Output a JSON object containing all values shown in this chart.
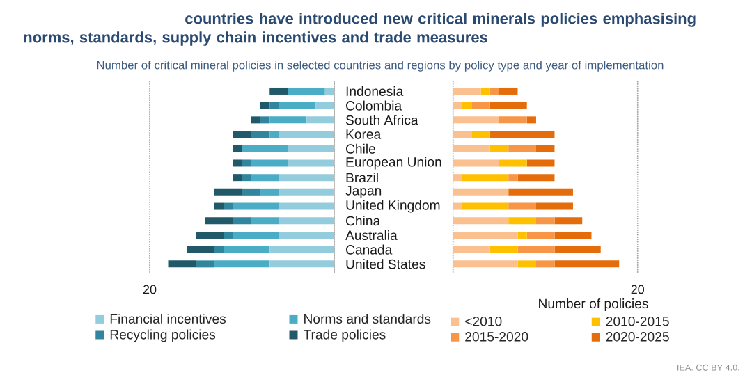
{
  "chart_data": [
    {
      "type": "bar",
      "title": "countries have introduced new critical minerals policies emphasising norms, standards, supply chain incentives and trade measures",
      "subtitle": "Number of critical mineral policies in selected countries and regions by policy type and year of implementation",
      "orientation": "horizontal",
      "stacked": true,
      "legend": "bottom",
      "grid": "x",
      "xlim": [
        20,
        0
      ],
      "xticks": [
        {
          "value": 0,
          "label": null
        },
        20
      ],
      "categories": [
        "Indonesia",
        "Colombia",
        "South Africa",
        "Korea",
        "Chile",
        "European Union",
        "Brazil",
        "Japan",
        "United Kingdom",
        "China",
        "Australia",
        "Canada",
        "United States"
      ],
      "series": [
        {
          "name": "Financial incentives",
          "color": "#93cddd",
          "values": [
            1,
            2,
            3,
            6,
            5,
            5,
            6,
            6,
            6,
            6,
            6,
            7,
            7
          ]
        },
        {
          "name": "Norms and standards",
          "color": "#4bacc6",
          "values": [
            4,
            4,
            4,
            1,
            5,
            4,
            3,
            2,
            5,
            3,
            5,
            5,
            6
          ]
        },
        {
          "name": "Recycling policies",
          "color": "#31859c",
          "values": [
            0,
            1,
            1,
            2,
            0,
            1,
            1,
            2,
            1,
            2,
            1,
            1,
            2
          ]
        },
        {
          "name": "Trade policies",
          "color": "#215968",
          "values": [
            2,
            1,
            1,
            2,
            1,
            1,
            1,
            3,
            1,
            3,
            3,
            3,
            3
          ]
        }
      ]
    },
    {
      "type": "bar",
      "xlabel": "Number of policies",
      "orientation": "horizontal",
      "stacked": true,
      "tick_labels": "x",
      "legend": "bottom",
      "grid": "x",
      "xlim": [
        0,
        20
      ],
      "xticks": [
        {
          "value": 0,
          "label": null
        },
        20
      ],
      "categories": [
        null,
        null,
        null,
        null,
        null,
        null,
        null,
        null,
        null,
        null,
        null,
        null,
        null
      ],
      "series": [
        {
          "name": "<2010",
          "color": "#fac090",
          "values": [
            3,
            1,
            5,
            2,
            4,
            5,
            1,
            6,
            1,
            6,
            7,
            4,
            7
          ]
        },
        {
          "name": "2010-2015",
          "color": "#ffc000",
          "values": [
            1,
            1,
            0,
            2,
            2,
            3,
            5,
            0,
            5,
            3,
            1,
            3,
            2
          ]
        },
        {
          "name": "2015-2020",
          "color": "#f79646",
          "values": [
            1,
            2,
            3,
            0,
            3,
            0,
            1,
            0,
            3,
            2,
            3,
            4,
            2
          ]
        },
        {
          "name": "2020-2025",
          "color": "#e46c0a",
          "values": [
            2,
            4,
            1,
            7,
            2,
            3,
            4,
            7,
            4,
            3,
            4,
            5,
            7
          ]
        }
      ],
      "annotations": [
        "IEA. CC BY 4.0."
      ]
    }
  ]
}
